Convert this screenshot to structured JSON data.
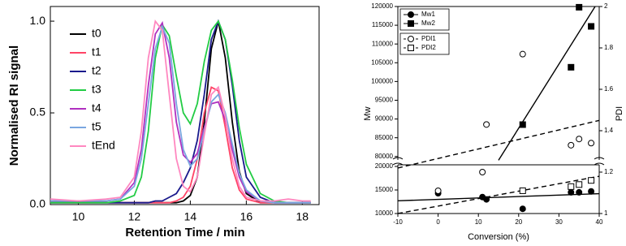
{
  "chart_data": [
    {
      "type": "line",
      "xlabel": "Retention Time / min",
      "ylabel": "Normalised RI signal",
      "x": [
        9,
        10,
        11,
        11.5,
        12,
        12.25,
        12.5,
        12.75,
        13,
        13.25,
        13.5,
        13.75,
        14,
        14.25,
        14.5,
        14.75,
        15,
        15.25,
        15.5,
        15.75,
        16,
        16.5,
        17,
        17.5,
        18,
        18.3
      ],
      "xlim": [
        9,
        18.6
      ],
      "xticks": [
        10,
        12,
        14,
        16,
        18
      ],
      "ylim": [
        0,
        1.08
      ],
      "yticks": [
        {
          "value": 0,
          "label": "0.0"
        },
        0.5,
        {
          "value": 1,
          "label": "1.0"
        }
      ],
      "series": [
        {
          "name": "t0",
          "color": "#000000",
          "values": [
            0.01,
            0.01,
            0.01,
            0.01,
            0.01,
            0.01,
            0.01,
            0.01,
            0.01,
            0.01,
            0.01,
            0.02,
            0.05,
            0.15,
            0.45,
            0.85,
            1.0,
            0.8,
            0.45,
            0.18,
            0.06,
            0.01,
            0.01,
            0.01,
            0.01,
            0.01
          ]
        },
        {
          "name": "t1",
          "color": "#ff4466",
          "values": [
            0.01,
            0.01,
            0.01,
            0.01,
            0.01,
            0.01,
            0.01,
            0.01,
            0.01,
            0.01,
            0.02,
            0.04,
            0.1,
            0.25,
            0.5,
            0.64,
            0.62,
            0.42,
            0.2,
            0.08,
            0.03,
            0.01,
            0.01,
            0.01,
            0.01,
            0.01
          ]
        },
        {
          "name": "t2",
          "color": "#1a1a8c",
          "values": [
            0.01,
            0.01,
            0.01,
            0.01,
            0.01,
            0.01,
            0.01,
            0.02,
            0.02,
            0.04,
            0.06,
            0.12,
            0.2,
            0.35,
            0.6,
            0.9,
            1.0,
            0.9,
            0.65,
            0.35,
            0.15,
            0.04,
            0.01,
            0.01,
            0.01,
            0.01
          ]
        },
        {
          "name": "t3",
          "color": "#22cc44",
          "values": [
            0.01,
            0.01,
            0.01,
            0.02,
            0.05,
            0.15,
            0.4,
            0.8,
            0.98,
            0.92,
            0.7,
            0.5,
            0.44,
            0.55,
            0.78,
            0.95,
            1.0,
            0.9,
            0.68,
            0.42,
            0.22,
            0.06,
            0.02,
            0.01,
            0.01,
            0.01
          ]
        },
        {
          "name": "t4",
          "color": "#b030c0",
          "values": [
            0.02,
            0.02,
            0.02,
            0.03,
            0.12,
            0.3,
            0.65,
            0.93,
            0.99,
            0.8,
            0.45,
            0.27,
            0.23,
            0.28,
            0.42,
            0.55,
            0.56,
            0.46,
            0.3,
            0.15,
            0.07,
            0.02,
            0.01,
            0.01,
            0.01,
            0.01
          ]
        },
        {
          "name": "t5",
          "color": "#7aa6e0",
          "values": [
            0.02,
            0.02,
            0.02,
            0.03,
            0.1,
            0.25,
            0.55,
            0.85,
            0.97,
            0.88,
            0.55,
            0.3,
            0.21,
            0.25,
            0.4,
            0.56,
            0.6,
            0.5,
            0.33,
            0.17,
            0.08,
            0.02,
            0.01,
            0.01,
            0.01,
            0.01
          ]
        },
        {
          "name": "tEnd",
          "color": "#ff88c0",
          "values": [
            0.03,
            0.02,
            0.03,
            0.04,
            0.15,
            0.4,
            0.8,
            1.0,
            0.95,
            0.6,
            0.25,
            0.1,
            0.07,
            0.15,
            0.38,
            0.6,
            0.64,
            0.48,
            0.25,
            0.1,
            0.04,
            0.02,
            0.02,
            0.03,
            0.02,
            0.02
          ]
        }
      ]
    },
    {
      "type": "scatter",
      "xlabel": "Conversion (%)",
      "ylabel": "Mw",
      "y2label": "PDI",
      "xlim": [
        -10,
        40
      ],
      "xticks": [
        -10,
        0,
        10,
        20,
        30,
        40
      ],
      "ylim": [
        10000,
        120000
      ],
      "y_break": [
        20000,
        78000
      ],
      "yticks": [
        10000,
        15000,
        20000,
        80000,
        85000,
        90000,
        95000,
        100000,
        105000,
        110000,
        115000,
        120000
      ],
      "y2lim": [
        1,
        2
      ],
      "y2ticks": [
        1,
        1.2,
        1.4,
        1.6,
        1.8,
        2
      ],
      "series": [
        {
          "name": "Mw1",
          "color": "#000000",
          "marker": "circle",
          "filled": true,
          "x": [
            0,
            11,
            12,
            21,
            33,
            35,
            38
          ],
          "values": [
            14300,
            13500,
            13000,
            11000,
            14500,
            14500,
            14700
          ]
        },
        {
          "name": "Mw2",
          "color": "#000000",
          "marker": "square",
          "filled": true,
          "x": [
            21,
            33,
            35,
            38
          ],
          "values": [
            88500,
            103800,
            119800,
            114700
          ]
        },
        {
          "name": "PDI1",
          "color": "#000000",
          "marker": "circle",
          "filled": false,
          "axis": "y2",
          "x": [
            0,
            11,
            12,
            21,
            33,
            35,
            38
          ],
          "values": [
            1.11,
            1.2,
            1.43,
            1.77,
            1.33,
            1.36,
            1.34
          ]
        },
        {
          "name": "PDI2",
          "color": "#000000",
          "marker": "square",
          "filled": false,
          "axis": "y2",
          "x": [
            21,
            33,
            35,
            38
          ],
          "values": [
            1.11,
            1.13,
            1.14,
            1.16
          ]
        }
      ],
      "fits": [
        {
          "axis": "y",
          "dashed": false,
          "x": [
            -10,
            40
          ],
          "values": [
            12700,
            14200
          ]
        },
        {
          "axis": "y",
          "dashed": false,
          "x": [
            15,
            39
          ],
          "values": [
            79000,
            120000
          ]
        },
        {
          "axis": "y2",
          "dashed": true,
          "x": [
            -10,
            40
          ],
          "values": [
            1.22,
            1.45
          ]
        },
        {
          "axis": "y2",
          "dashed": true,
          "x": [
            -10,
            40
          ],
          "values": [
            1.0,
            1.18
          ]
        }
      ]
    }
  ]
}
